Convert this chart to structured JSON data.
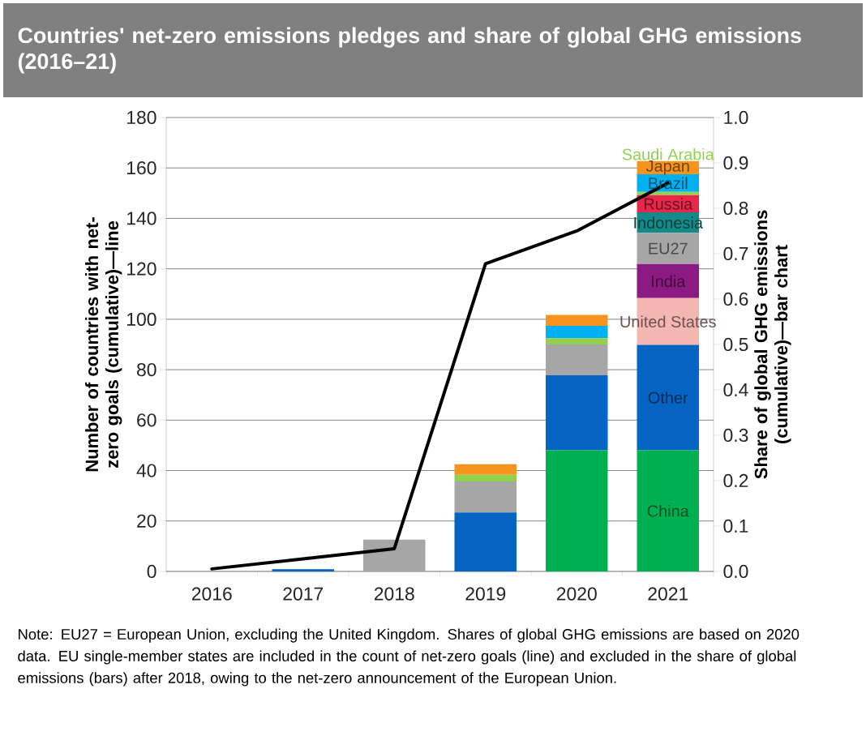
{
  "chart_data": {
    "type": "bar",
    "title": "Countries' net-zero emissions pledges and share of global GHG emissions (2016–21)",
    "ylabel": "Number of countries with net-zero goals (cumulative)—line",
    "y2label": "Share of global GHG emissions (cumulative)—bar chart",
    "categories": [
      "2016",
      "2017",
      "2018",
      "2019",
      "2020",
      "2021"
    ],
    "stacked": true,
    "grid": "y",
    "ylim": [
      0,
      180
    ],
    "yticks": [
      0,
      20,
      40,
      60,
      80,
      100,
      120,
      140,
      160,
      180
    ],
    "y2lim": [
      0,
      1
    ],
    "y2ticks": [
      {
        "value": 0,
        "label": "0.0"
      },
      {
        "value": 0.1,
        "label": "0.1"
      },
      {
        "value": 0.2,
        "label": "0.2"
      },
      {
        "value": 0.3,
        "label": "0.3"
      },
      {
        "value": 0.4,
        "label": "0.4"
      },
      {
        "value": 0.5,
        "label": "0.5"
      },
      {
        "value": 0.6,
        "label": "0.6"
      },
      {
        "value": 0.7,
        "label": "0.7"
      },
      {
        "value": 0.8,
        "label": "0.8"
      },
      {
        "value": 0.9,
        "label": "0.9"
      },
      {
        "value": 1,
        "label": "1.0"
      }
    ],
    "annotations": [
      "Note: EU27 = European Union, excluding the United Kingdom. Shares of global GHG emissions are based on 2020 data. EU single-member states are included in the count of net-zero goals (line) and excluded in the share of global emissions (bars) after 2018, owing to the net-zero announcement of the European Union."
    ],
    "series": [
      {
        "name": "China",
        "color": "#00b050",
        "axis": "y2",
        "values": [
          null,
          null,
          null,
          null,
          0.267,
          0.267
        ]
      },
      {
        "name": "Other",
        "color": "#0563c1",
        "axis": "y2",
        "values": [
          null,
          0.005,
          null,
          0.13,
          0.165,
          0.232
        ]
      },
      {
        "name": "United States",
        "color": "#f4b6b0",
        "axis": "y2",
        "values": [
          null,
          null,
          null,
          null,
          null,
          0.103
        ]
      },
      {
        "name": "India",
        "color": "#8b1a83",
        "axis": "y2",
        "values": [
          null,
          null,
          null,
          null,
          null,
          0.075
        ]
      },
      {
        "name": "EU27",
        "color": "#a6a6a6",
        "axis": "y2",
        "values": [
          null,
          null,
          0.07,
          0.068,
          0.068,
          0.069
        ]
      },
      {
        "name": "Indonesia",
        "color": "#158a8a",
        "axis": "y2",
        "values": [
          null,
          null,
          null,
          null,
          null,
          0.045
        ]
      },
      {
        "name": "Russia",
        "color": "#e8274b",
        "axis": "y2",
        "values": [
          null,
          null,
          null,
          null,
          null,
          0.038
        ]
      },
      {
        "name": "Saudi Arabia",
        "color": "#92d050",
        "axis": "y2",
        "values": [
          null,
          null,
          null,
          0.015,
          0.014,
          0.007
        ]
      },
      {
        "name": "Brazil",
        "color": "#00b0f0",
        "axis": "y2",
        "values": [
          null,
          null,
          null,
          null,
          0.027,
          0.039
        ]
      },
      {
        "name": "Japan",
        "color": "#f7941d",
        "axis": "y2",
        "values": [
          null,
          null,
          null,
          0.023,
          0.024,
          0.029
        ]
      },
      {
        "type": "line",
        "color": "#000000",
        "axis": "y",
        "values": [
          1,
          5,
          9,
          122,
          135,
          154
        ]
      }
    ]
  }
}
